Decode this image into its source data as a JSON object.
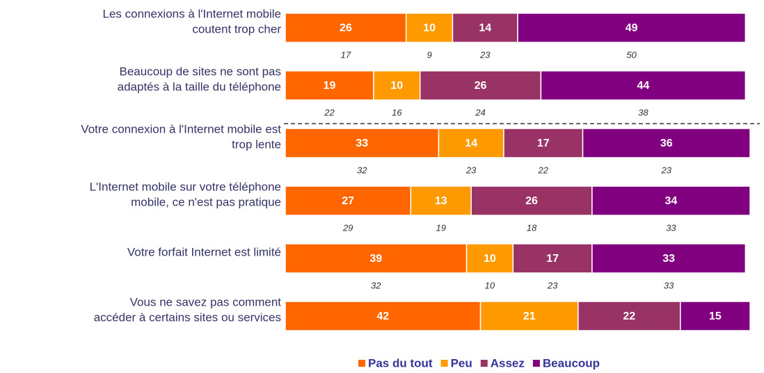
{
  "chart_data": {
    "type": "stacked_bar_horizontal",
    "categories": [
      [
        "Les connexions à l'Internet mobile",
        "coutent trop cher"
      ],
      [
        "Beaucoup de sites ne sont pas",
        "adaptés à la taille du téléphone"
      ],
      [
        "Votre connexion à l'Internet mobile est",
        "trop lente"
      ],
      [
        "L'Internet mobile sur votre téléphone",
        "mobile, ce n'est pas pratique"
      ],
      [
        "Votre forfait Internet est limité"
      ],
      [
        "Vous ne savez pas comment",
        "accéder à certains sites ou services"
      ]
    ],
    "series": [
      {
        "name": "Pas du tout",
        "color": "#ff6600",
        "values": [
          26,
          19,
          33,
          27,
          39,
          42
        ],
        "previous": [
          17,
          22,
          32,
          29,
          32,
          null
        ]
      },
      {
        "name": "Peu",
        "color": "#ff9900",
        "values": [
          10,
          10,
          14,
          13,
          10,
          21
        ],
        "previous": [
          9,
          16,
          23,
          19,
          10,
          null
        ]
      },
      {
        "name": "Assez",
        "color": "#993366",
        "values": [
          14,
          26,
          17,
          26,
          17,
          22
        ],
        "previous": [
          23,
          24,
          22,
          18,
          23,
          null
        ]
      },
      {
        "name": "Beaucoup",
        "color": "#800080",
        "values": [
          49,
          44,
          36,
          34,
          33,
          15
        ],
        "previous": [
          50,
          38,
          23,
          33,
          33,
          null
        ]
      }
    ],
    "xlim": [
      0,
      100
    ],
    "legend": "bottom"
  }
}
